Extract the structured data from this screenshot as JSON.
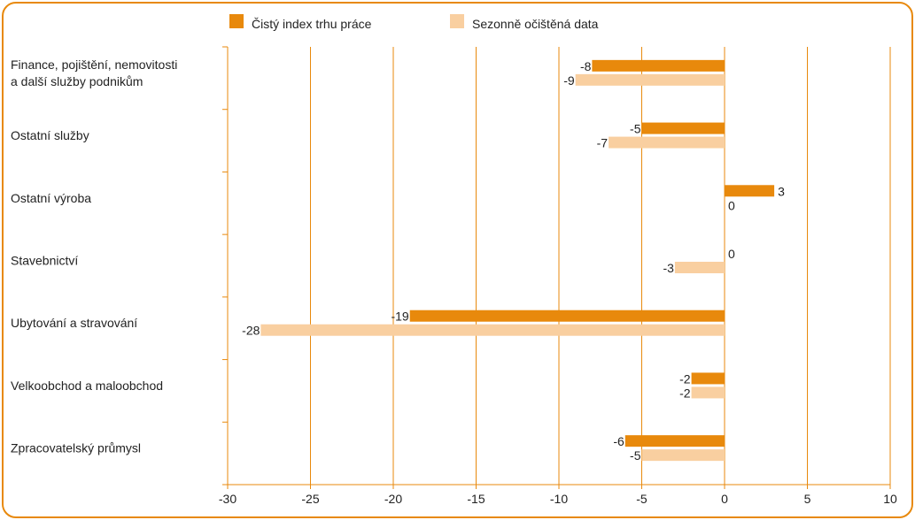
{
  "chart_data": {
    "type": "bar",
    "orientation": "horizontal",
    "categories": [
      [
        "Finance, pojištění, nemovitosti",
        "a další služby podnikům"
      ],
      [
        "Ostatní služby"
      ],
      [
        "Ostatní výroba"
      ],
      [
        "Stavebnictví"
      ],
      [
        "Ubytování a stravování"
      ],
      [
        "Velkoobchod a maloobchod"
      ],
      [
        "Zpracovatelský průmysl"
      ]
    ],
    "series": [
      {
        "name": "Čistý index trhu práce",
        "color": "#e8890c",
        "values": [
          -8,
          -5,
          3,
          0,
          -19,
          -2,
          -6
        ]
      },
      {
        "name": "Sezonně očištěná data",
        "color": "#f9cfa0",
        "values": [
          -9,
          -7,
          0,
          -3,
          -28,
          -2,
          -5
        ]
      }
    ],
    "xlim": [
      -30,
      10
    ],
    "xticks": [
      -30,
      -25,
      -20,
      -15,
      -10,
      -5,
      0,
      5,
      10
    ],
    "grid": "vertical",
    "grid_color": "#e8890c",
    "legend_position": "top"
  }
}
